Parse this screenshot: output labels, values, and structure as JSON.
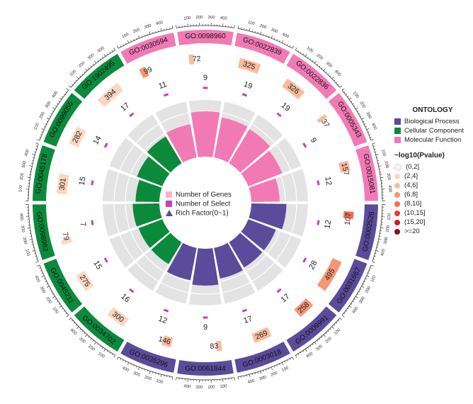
{
  "chart_data": {
    "type": "circular-go-enrichment",
    "title": "",
    "center_legend": [
      {
        "label": "Number of Genes",
        "color": "#f7b4c4"
      },
      {
        "label": "Number of Select",
        "color": "#c43fbf"
      },
      {
        "label": "Rich Factor(0~1)",
        "color": "#5a4b9b"
      }
    ],
    "ontology_legend": {
      "title": "ONTOLOGY",
      "items": [
        {
          "label": "Biological Process",
          "color": "#5a4b9b"
        },
        {
          "label": "Cellular Component",
          "color": "#0c8a3c"
        },
        {
          "label": "Molecular Function",
          "color": "#f27ab4"
        }
      ]
    },
    "pvalue_legend": {
      "title": "−log10(Pvalue)",
      "bins": [
        {
          "label": "(0,2]",
          "color": "#fff3ee"
        },
        {
          "label": "(2,4]",
          "color": "#fcd6c2"
        },
        {
          "label": "(4,6]",
          "color": "#fbbb9b"
        },
        {
          "label": "(6,8]",
          "color": "#f79674"
        },
        {
          "label": "(8,10]",
          "color": "#f26e4f"
        },
        {
          "label": "(10,15]",
          "color": "#e63d2e"
        },
        {
          "label": "(15,20]",
          "color": "#cb1c1e"
        },
        {
          "label": ">=20",
          "color": "#8f0d15"
        }
      ]
    },
    "ring_axis_ticks": [
      "100",
      "200",
      "300",
      "400"
    ],
    "terms": [
      {
        "id": "GO:0098960",
        "ontology": "MF",
        "genes": 72,
        "selected": 9,
        "rich": 0.8,
        "p_bin": 2
      },
      {
        "id": "GO:0022839",
        "ontology": "MF",
        "genes": 325,
        "selected": 19,
        "rich": 0.72,
        "p_bin": 2
      },
      {
        "id": "GO:0022836",
        "ontology": "MF",
        "genes": 326,
        "selected": 19,
        "rich": 0.7,
        "p_bin": 2
      },
      {
        "id": "GO:0005343",
        "ontology": "MF",
        "genes": 37,
        "selected": 9,
        "rich": 0.64,
        "p_bin": 2
      },
      {
        "id": "GO:0015081",
        "ontology": "MF",
        "genes": 157,
        "selected": 12,
        "rich": 0.5,
        "p_bin": 2
      },
      {
        "id": "GO:0002526",
        "ontology": "BP",
        "genes": 107,
        "selected": 12,
        "rich": 0.62,
        "p_bin": 4
      },
      {
        "id": "GO:0031667",
        "ontology": "BP",
        "genes": 495,
        "selected": 28,
        "rich": 0.52,
        "p_bin": 3
      },
      {
        "id": "GO:0009991",
        "ontology": "BP",
        "genes": 258,
        "selected": 17,
        "rich": 0.52,
        "p_bin": 3
      },
      {
        "id": "GO:0003018",
        "ontology": "BP",
        "genes": 269,
        "selected": 17,
        "rich": 0.55,
        "p_bin": 2
      },
      {
        "id": "GO:0061844",
        "ontology": "BP",
        "genes": 83,
        "selected": 9,
        "rich": 0.65,
        "p_bin": 2
      },
      {
        "id": "GO:0035296",
        "ontology": "BP",
        "genes": 146,
        "selected": 12,
        "rich": 0.58,
        "p_bin": 2
      },
      {
        "id": "GO:0034702",
        "ontology": "CC",
        "genes": 300,
        "selected": 16,
        "rich": 0.45,
        "p_bin": 1
      },
      {
        "id": "GO:0045211",
        "ontology": "CC",
        "genes": 275,
        "selected": 15,
        "rich": 0.45,
        "p_bin": 1
      },
      {
        "id": "GO:0098982",
        "ontology": "CC",
        "genes": 79,
        "selected": 7,
        "rich": 0.47,
        "p_bin": 1
      },
      {
        "id": "GO:0045178",
        "ontology": "CC",
        "genes": 301,
        "selected": 15,
        "rich": 0.42,
        "p_bin": 1
      },
      {
        "id": "GO:0099055",
        "ontology": "CC",
        "genes": 282,
        "selected": 14,
        "rich": 0.48,
        "p_bin": 1
      },
      {
        "id": "GO:1902495",
        "ontology": "CC",
        "genes": 394,
        "selected": 17,
        "rich": 0.55,
        "p_bin": 1
      },
      {
        "id": "GO:0030594",
        "ontology": "MF",
        "genes": 99,
        "selected": 11,
        "rich": 0.6,
        "p_bin": 3
      }
    ]
  }
}
